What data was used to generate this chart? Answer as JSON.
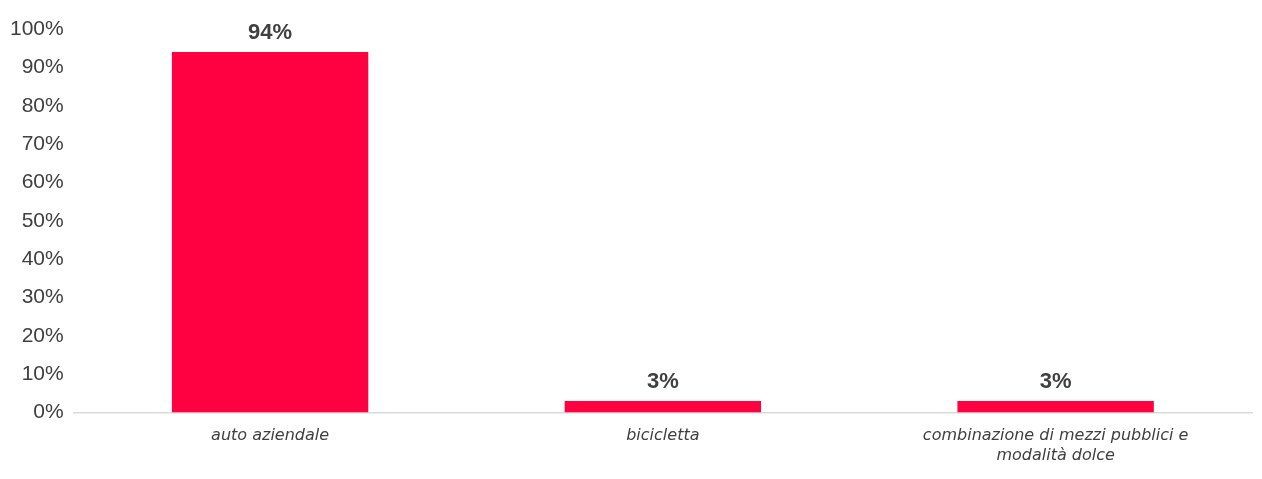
{
  "chart_data": {
    "type": "bar",
    "categories": [
      "auto aziendale",
      "bicicletta",
      "combinazione di mezzi pubblici e modalità dolce"
    ],
    "values": [
      94,
      3,
      3
    ],
    "value_labels": [
      "94%",
      "3%",
      "3%"
    ],
    "color": "#ff0040",
    "ylim": [
      0,
      100
    ],
    "yticks": [
      {
        "value": 0,
        "label": "0%"
      },
      {
        "value": 10,
        "label": "10%"
      },
      {
        "value": 20,
        "label": "20%"
      },
      {
        "value": 30,
        "label": "30%"
      },
      {
        "value": 40,
        "label": "40%"
      },
      {
        "value": 50,
        "label": "50%"
      },
      {
        "value": 60,
        "label": "60%"
      },
      {
        "value": 70,
        "label": "70%"
      },
      {
        "value": 80,
        "label": "80%"
      },
      {
        "value": 90,
        "label": "90%"
      },
      {
        "value": 100,
        "label": "100%"
      }
    ],
    "grid": false,
    "legend": false
  }
}
